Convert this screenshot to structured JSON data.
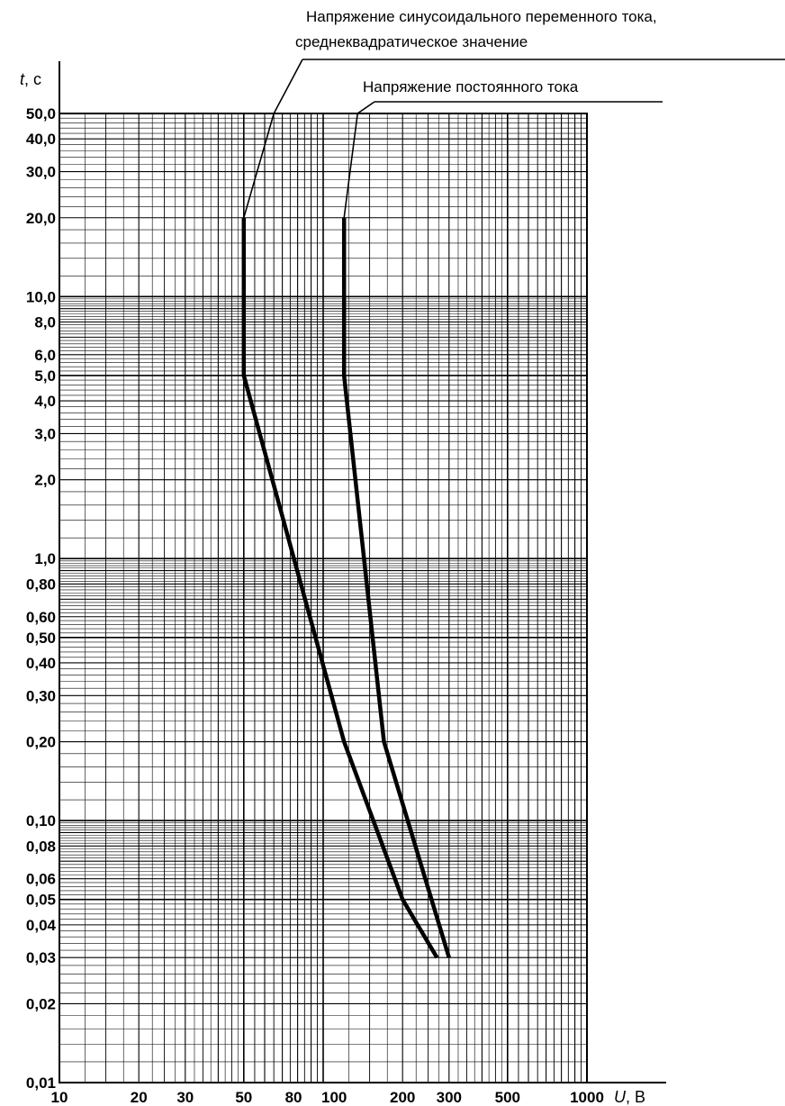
{
  "chart_data": {
    "type": "line",
    "x_scale": "log",
    "y_scale": "log",
    "xlim": [
      10,
      1000
    ],
    "ylim": [
      0.01,
      50
    ],
    "grid": true,
    "x_axis_label": {
      "var": "U",
      "unit": ", В"
    },
    "y_axis_label": {
      "var": "t",
      "unit": ", с"
    },
    "x_tick_labels": [
      {
        "value": 10,
        "label": "10"
      },
      {
        "value": 20,
        "label": "20"
      },
      {
        "value": 30,
        "label": "30"
      },
      {
        "value": 50,
        "label": "50"
      },
      {
        "value": 80,
        "label": "80"
      },
      {
        "value": 100,
        "label": "100"
      },
      {
        "value": 200,
        "label": "200"
      },
      {
        "value": 300,
        "label": "300"
      },
      {
        "value": 500,
        "label": "500"
      },
      {
        "value": 1000,
        "label": "1000"
      }
    ],
    "y_tick_labels": [
      {
        "value": 50,
        "label": "50,0"
      },
      {
        "value": 40,
        "label": "40,0"
      },
      {
        "value": 30,
        "label": "30,0"
      },
      {
        "value": 20,
        "label": "20,0"
      },
      {
        "value": 10,
        "label": "10,0"
      },
      {
        "value": 8,
        "label": "8,0"
      },
      {
        "value": 6,
        "label": "6,0"
      },
      {
        "value": 5,
        "label": "5,0"
      },
      {
        "value": 4,
        "label": "4,0"
      },
      {
        "value": 3,
        "label": "3,0"
      },
      {
        "value": 2,
        "label": "2,0"
      },
      {
        "value": 1,
        "label": "1,0"
      },
      {
        "value": 0.8,
        "label": "0,80"
      },
      {
        "value": 0.6,
        "label": "0,60"
      },
      {
        "value": 0.5,
        "label": "0,50"
      },
      {
        "value": 0.4,
        "label": "0,40"
      },
      {
        "value": 0.3,
        "label": "0,30"
      },
      {
        "value": 0.2,
        "label": "0,20"
      },
      {
        "value": 0.1,
        "label": "0,10"
      },
      {
        "value": 0.08,
        "label": "0,08"
      },
      {
        "value": 0.06,
        "label": "0,06"
      },
      {
        "value": 0.05,
        "label": "0,05"
      },
      {
        "value": 0.04,
        "label": "0,04"
      },
      {
        "value": 0.03,
        "label": "0,03"
      },
      {
        "value": 0.02,
        "label": "0,02"
      },
      {
        "value": 0.01,
        "label": "0,01"
      }
    ],
    "series": [
      {
        "name": "Напряжение синусоидального переменного тока, среднеквадратическое значение",
        "name_lines": [
          "Напряжение синусоидального переменного тока,",
          "среднеквадратическое значение"
        ],
        "x": [
          50,
          50,
          50,
          120,
          200,
          270
        ],
        "y": [
          20,
          10,
          5,
          0.2,
          0.05,
          0.03
        ],
        "leader_from": {
          "x": 65,
          "y": 50
        }
      },
      {
        "name": "Напряжение постоянного тока",
        "name_lines": [
          "Напряжение постоянного тока"
        ],
        "x": [
          120,
          120,
          120,
          170,
          300
        ],
        "y": [
          20,
          10,
          5,
          0.2,
          0.03
        ],
        "leader_from": {
          "x": 135,
          "y": 50
        }
      }
    ]
  }
}
